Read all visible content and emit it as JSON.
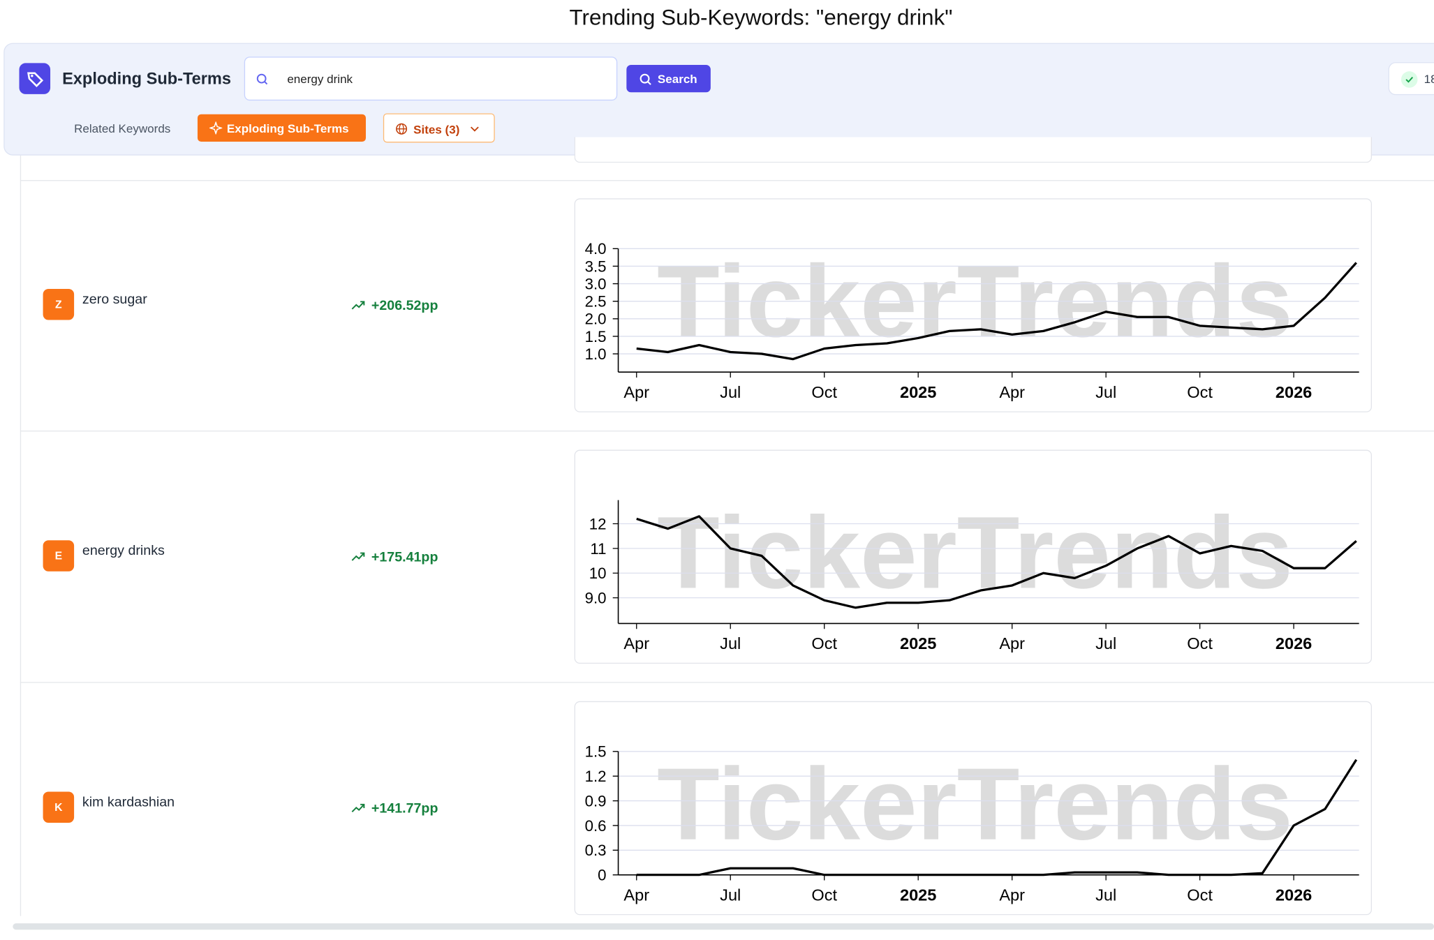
{
  "page_title": "Trending Sub-Keywords: \"energy drink\"",
  "header": {
    "brand": "Exploding Sub-Terms",
    "search_value": "energy drink",
    "search_button": "Search",
    "status_count": "18"
  },
  "tabs": [
    "Related Keywords",
    "Exploding Sub-Terms",
    "Sites (3)"
  ],
  "watermark": "TickerTrends",
  "rows": [
    {
      "initial": "Z",
      "keyword": "zero sugar",
      "change": "+206.52pp"
    },
    {
      "initial": "E",
      "keyword": "energy drinks",
      "change": "+175.41pp"
    },
    {
      "initial": "K",
      "keyword": "kim kardashian",
      "change": "+141.77pp"
    }
  ],
  "chart_data": [
    {
      "type": "line",
      "x": [
        "2024-04",
        "2024-05",
        "2024-06",
        "2024-07",
        "2024-08",
        "2024-09",
        "2024-10",
        "2024-11",
        "2024-12",
        "2025-01",
        "2025-02",
        "2025-03",
        "2025-04",
        "2025-05",
        "2025-06",
        "2025-07",
        "2025-08",
        "2025-09",
        "2025-10",
        "2025-11",
        "2025-12",
        "2026-01",
        "2026-02",
        "2026-03"
      ],
      "series": [
        {
          "color": "#000000",
          "values": [
            1.15,
            1.05,
            1.25,
            1.05,
            1.0,
            0.85,
            1.15,
            1.25,
            1.3,
            1.45,
            1.65,
            1.7,
            1.55,
            1.65,
            1.9,
            2.2,
            2.05,
            2.05,
            1.8,
            1.75,
            1.7,
            1.8,
            2.6,
            3.6
          ]
        }
      ],
      "xlim": [
        "2024-04",
        "2026-03"
      ],
      "xticks": [
        {
          "value": "2024-04",
          "label": "Apr"
        },
        {
          "value": "2024-07",
          "label": "Jul"
        },
        {
          "value": "2024-10",
          "label": "Oct"
        },
        {
          "value": "2025-01",
          "label": "2025"
        },
        {
          "value": "2025-04",
          "label": "Apr"
        },
        {
          "value": "2025-07",
          "label": "Jul"
        },
        {
          "value": "2025-10",
          "label": "Oct"
        },
        {
          "value": "2026-01",
          "label": "2026"
        }
      ],
      "ylim": [
        0.48,
        4.0
      ],
      "yticks": [
        {
          "value": 1,
          "label": "1.0"
        },
        1.5,
        {
          "value": 2,
          "label": "2.0"
        },
        2.5,
        {
          "value": 3,
          "label": "3.0"
        },
        3.5,
        {
          "value": 4,
          "label": "4.0"
        }
      ],
      "grid": true
    },
    {
      "type": "line",
      "x": [
        "2024-04",
        "2024-05",
        "2024-06",
        "2024-07",
        "2024-08",
        "2024-09",
        "2024-10",
        "2024-11",
        "2024-12",
        "2025-01",
        "2025-02",
        "2025-03",
        "2025-04",
        "2025-05",
        "2025-06",
        "2025-07",
        "2025-08",
        "2025-09",
        "2025-10",
        "2025-11",
        "2025-12",
        "2026-01",
        "2026-02",
        "2026-03"
      ],
      "series": [
        {
          "color": "#000000",
          "values": [
            12.2,
            11.8,
            12.3,
            11.0,
            10.7,
            9.5,
            8.9,
            8.6,
            8.8,
            8.8,
            8.9,
            9.3,
            9.5,
            10.0,
            9.8,
            10.3,
            11.0,
            11.5,
            10.8,
            11.1,
            10.9,
            10.2,
            10.2,
            11.3
          ]
        }
      ],
      "xlim": [
        "2024-04",
        "2026-03"
      ],
      "xticks": [
        {
          "value": "2024-04",
          "label": "Apr"
        },
        {
          "value": "2024-07",
          "label": "Jul"
        },
        {
          "value": "2024-10",
          "label": "Oct"
        },
        {
          "value": "2025-01",
          "label": "2025"
        },
        {
          "value": "2025-04",
          "label": "Apr"
        },
        {
          "value": "2025-07",
          "label": "Jul"
        },
        {
          "value": "2025-10",
          "label": "Oct"
        },
        {
          "value": "2026-01",
          "label": "2026"
        }
      ],
      "ylim": [
        7.96,
        12.96
      ],
      "yticks": [
        {
          "value": 9,
          "label": "9.0"
        },
        10,
        11,
        12
      ],
      "grid": true
    },
    {
      "type": "line",
      "x": [
        "2024-04",
        "2024-05",
        "2024-06",
        "2024-07",
        "2024-08",
        "2024-09",
        "2024-10",
        "2024-11",
        "2024-12",
        "2025-01",
        "2025-02",
        "2025-03",
        "2025-04",
        "2025-05",
        "2025-06",
        "2025-07",
        "2025-08",
        "2025-09",
        "2025-10",
        "2025-11",
        "2025-12",
        "2026-01",
        "2026-02",
        "2026-03"
      ],
      "series": [
        {
          "color": "#000000",
          "values": [
            0,
            0,
            0,
            0.08,
            0.08,
            0.08,
            0,
            0,
            0,
            0,
            0,
            0,
            0,
            0,
            0.03,
            0.03,
            0.03,
            0,
            0,
            0,
            0.02,
            0.6,
            0.8,
            1.4
          ]
        }
      ],
      "xlim": [
        "2024-04",
        "2026-03"
      ],
      "xticks": [
        {
          "value": "2024-04",
          "label": "Apr"
        },
        {
          "value": "2024-07",
          "label": "Jul"
        },
        {
          "value": "2024-10",
          "label": "Oct"
        },
        {
          "value": "2025-01",
          "label": "2025"
        },
        {
          "value": "2025-04",
          "label": "Apr"
        },
        {
          "value": "2025-07",
          "label": "Jul"
        },
        {
          "value": "2025-10",
          "label": "Oct"
        },
        {
          "value": "2026-01",
          "label": "2026"
        }
      ],
      "ylim": [
        0,
        1.5
      ],
      "yticks": [
        0,
        0.3,
        0.6,
        0.9,
        1.2,
        1.5
      ],
      "grid": true
    }
  ]
}
